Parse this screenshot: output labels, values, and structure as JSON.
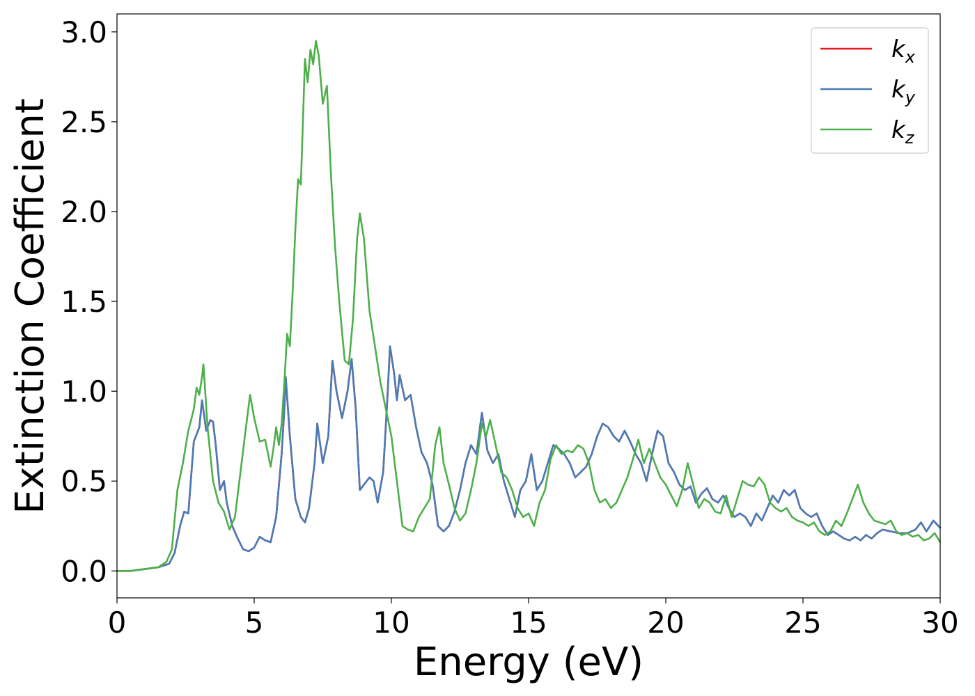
{
  "chart_data": {
    "type": "line",
    "xlabel": "Energy (eV)",
    "ylabel": "Extinction Coefficient",
    "xlim": [
      0,
      30
    ],
    "ylim": [
      -0.15,
      3.1
    ],
    "xticks": [
      "0",
      "5",
      "10",
      "15",
      "20",
      "25",
      "30"
    ],
    "yticks": [
      "0.0",
      "0.5",
      "1.0",
      "1.5",
      "2.0",
      "2.5",
      "3.0"
    ],
    "grid": false,
    "legend_position": "top-right",
    "series": [
      {
        "name": "k_x",
        "legend": {
          "base": "k",
          "sub": "x"
        },
        "color": "#e41a1c",
        "same_as": "k_y"
      },
      {
        "name": "k_y",
        "legend": {
          "base": "k",
          "sub": "y"
        },
        "color": "#4a7bb7",
        "points": [
          [
            0,
            0
          ],
          [
            0.5,
            0
          ],
          [
            1.0,
            0.01
          ],
          [
            1.5,
            0.02
          ],
          [
            1.9,
            0.04
          ],
          [
            2.1,
            0.1
          ],
          [
            2.3,
            0.25
          ],
          [
            2.45,
            0.33
          ],
          [
            2.6,
            0.32
          ],
          [
            2.8,
            0.72
          ],
          [
            3.0,
            0.8
          ],
          [
            3.1,
            0.95
          ],
          [
            3.25,
            0.78
          ],
          [
            3.4,
            0.84
          ],
          [
            3.5,
            0.83
          ],
          [
            3.6,
            0.7
          ],
          [
            3.75,
            0.45
          ],
          [
            3.9,
            0.5
          ],
          [
            4.0,
            0.38
          ],
          [
            4.2,
            0.25
          ],
          [
            4.4,
            0.18
          ],
          [
            4.6,
            0.12
          ],
          [
            4.8,
            0.11
          ],
          [
            5.0,
            0.13
          ],
          [
            5.2,
            0.19
          ],
          [
            5.4,
            0.17
          ],
          [
            5.6,
            0.16
          ],
          [
            5.8,
            0.3
          ],
          [
            6.0,
            0.65
          ],
          [
            6.1,
            0.9
          ],
          [
            6.15,
            1.08
          ],
          [
            6.3,
            0.75
          ],
          [
            6.5,
            0.4
          ],
          [
            6.7,
            0.3
          ],
          [
            6.85,
            0.27
          ],
          [
            7.0,
            0.35
          ],
          [
            7.2,
            0.6
          ],
          [
            7.3,
            0.82
          ],
          [
            7.5,
            0.6
          ],
          [
            7.7,
            0.75
          ],
          [
            7.85,
            1.17
          ],
          [
            8.0,
            1.0
          ],
          [
            8.2,
            0.85
          ],
          [
            8.4,
            1.0
          ],
          [
            8.55,
            1.18
          ],
          [
            8.7,
            0.9
          ],
          [
            8.85,
            0.45
          ],
          [
            9.0,
            0.48
          ],
          [
            9.2,
            0.52
          ],
          [
            9.35,
            0.5
          ],
          [
            9.5,
            0.38
          ],
          [
            9.7,
            0.55
          ],
          [
            9.85,
            0.95
          ],
          [
            9.95,
            1.25
          ],
          [
            10.1,
            1.1
          ],
          [
            10.2,
            0.95
          ],
          [
            10.3,
            1.09
          ],
          [
            10.5,
            0.95
          ],
          [
            10.7,
            0.98
          ],
          [
            10.9,
            0.8
          ],
          [
            11.1,
            0.66
          ],
          [
            11.3,
            0.6
          ],
          [
            11.5,
            0.48
          ],
          [
            11.7,
            0.25
          ],
          [
            11.9,
            0.22
          ],
          [
            12.1,
            0.25
          ],
          [
            12.3,
            0.33
          ],
          [
            12.5,
            0.45
          ],
          [
            12.7,
            0.6
          ],
          [
            12.9,
            0.7
          ],
          [
            13.1,
            0.65
          ],
          [
            13.3,
            0.88
          ],
          [
            13.5,
            0.67
          ],
          [
            13.7,
            0.6
          ],
          [
            13.9,
            0.65
          ],
          [
            14.1,
            0.5
          ],
          [
            14.3,
            0.4
          ],
          [
            14.5,
            0.3
          ],
          [
            14.7,
            0.45
          ],
          [
            14.9,
            0.5
          ],
          [
            15.1,
            0.65
          ],
          [
            15.3,
            0.45
          ],
          [
            15.5,
            0.5
          ],
          [
            15.7,
            0.6
          ],
          [
            15.9,
            0.7
          ],
          [
            16.1,
            0.68
          ],
          [
            16.3,
            0.65
          ],
          [
            16.5,
            0.6
          ],
          [
            16.7,
            0.52
          ],
          [
            16.9,
            0.55
          ],
          [
            17.1,
            0.58
          ],
          [
            17.3,
            0.65
          ],
          [
            17.5,
            0.75
          ],
          [
            17.7,
            0.82
          ],
          [
            17.9,
            0.8
          ],
          [
            18.1,
            0.75
          ],
          [
            18.3,
            0.72
          ],
          [
            18.5,
            0.78
          ],
          [
            18.7,
            0.72
          ],
          [
            18.9,
            0.65
          ],
          [
            19.1,
            0.6
          ],
          [
            19.3,
            0.5
          ],
          [
            19.5,
            0.65
          ],
          [
            19.7,
            0.78
          ],
          [
            19.9,
            0.75
          ],
          [
            20.1,
            0.6
          ],
          [
            20.3,
            0.55
          ],
          [
            20.5,
            0.48
          ],
          [
            20.7,
            0.45
          ],
          [
            20.9,
            0.47
          ],
          [
            21.1,
            0.38
          ],
          [
            21.3,
            0.43
          ],
          [
            21.5,
            0.46
          ],
          [
            21.7,
            0.4
          ],
          [
            21.9,
            0.38
          ],
          [
            22.1,
            0.42
          ],
          [
            22.3,
            0.35
          ],
          [
            22.5,
            0.3
          ],
          [
            22.7,
            0.32
          ],
          [
            22.9,
            0.3
          ],
          [
            23.1,
            0.25
          ],
          [
            23.3,
            0.32
          ],
          [
            23.5,
            0.28
          ],
          [
            23.7,
            0.35
          ],
          [
            23.9,
            0.42
          ],
          [
            24.1,
            0.38
          ],
          [
            24.3,
            0.45
          ],
          [
            24.5,
            0.42
          ],
          [
            24.7,
            0.45
          ],
          [
            24.9,
            0.35
          ],
          [
            25.1,
            0.32
          ],
          [
            25.3,
            0.3
          ],
          [
            25.5,
            0.32
          ],
          [
            25.7,
            0.25
          ],
          [
            25.9,
            0.2
          ],
          [
            26.1,
            0.22
          ],
          [
            26.3,
            0.2
          ],
          [
            26.5,
            0.18
          ],
          [
            26.7,
            0.17
          ],
          [
            26.9,
            0.19
          ],
          [
            27.1,
            0.17
          ],
          [
            27.3,
            0.2
          ],
          [
            27.5,
            0.18
          ],
          [
            27.7,
            0.21
          ],
          [
            27.9,
            0.23
          ],
          [
            28.2,
            0.22
          ],
          [
            28.5,
            0.21
          ],
          [
            28.8,
            0.21
          ],
          [
            29.1,
            0.23
          ],
          [
            29.3,
            0.27
          ],
          [
            29.5,
            0.22
          ],
          [
            29.75,
            0.28
          ],
          [
            30.0,
            0.24
          ]
        ]
      },
      {
        "name": "k_z",
        "legend": {
          "base": "k",
          "sub": "z"
        },
        "color": "#4daf4a",
        "points": [
          [
            0,
            0
          ],
          [
            0.5,
            0
          ],
          [
            1.0,
            0.01
          ],
          [
            1.5,
            0.02
          ],
          [
            1.8,
            0.05
          ],
          [
            2.0,
            0.12
          ],
          [
            2.2,
            0.45
          ],
          [
            2.4,
            0.6
          ],
          [
            2.6,
            0.78
          ],
          [
            2.8,
            0.9
          ],
          [
            2.9,
            1.02
          ],
          [
            3.0,
            0.98
          ],
          [
            3.1,
            1.08
          ],
          [
            3.15,
            1.15
          ],
          [
            3.3,
            0.8
          ],
          [
            3.5,
            0.5
          ],
          [
            3.7,
            0.38
          ],
          [
            3.9,
            0.33
          ],
          [
            4.1,
            0.23
          ],
          [
            4.3,
            0.3
          ],
          [
            4.5,
            0.55
          ],
          [
            4.7,
            0.8
          ],
          [
            4.85,
            0.98
          ],
          [
            5.0,
            0.85
          ],
          [
            5.2,
            0.72
          ],
          [
            5.4,
            0.73
          ],
          [
            5.6,
            0.58
          ],
          [
            5.7,
            0.68
          ],
          [
            5.8,
            0.8
          ],
          [
            5.9,
            0.7
          ],
          [
            6.0,
            0.82
          ],
          [
            6.1,
            1.05
          ],
          [
            6.2,
            1.32
          ],
          [
            6.3,
            1.25
          ],
          [
            6.4,
            1.55
          ],
          [
            6.5,
            1.9
          ],
          [
            6.6,
            2.18
          ],
          [
            6.7,
            2.15
          ],
          [
            6.85,
            2.85
          ],
          [
            6.95,
            2.72
          ],
          [
            7.05,
            2.9
          ],
          [
            7.15,
            2.82
          ],
          [
            7.25,
            2.95
          ],
          [
            7.35,
            2.87
          ],
          [
            7.5,
            2.6
          ],
          [
            7.65,
            2.7
          ],
          [
            7.8,
            2.2
          ],
          [
            7.95,
            1.8
          ],
          [
            8.1,
            1.5
          ],
          [
            8.3,
            1.17
          ],
          [
            8.45,
            1.15
          ],
          [
            8.6,
            1.4
          ],
          [
            8.75,
            1.85
          ],
          [
            8.85,
            1.99
          ],
          [
            9.0,
            1.85
          ],
          [
            9.2,
            1.45
          ],
          [
            9.4,
            1.25
          ],
          [
            9.6,
            1.05
          ],
          [
            9.8,
            0.9
          ],
          [
            10.0,
            0.75
          ],
          [
            10.2,
            0.5
          ],
          [
            10.4,
            0.25
          ],
          [
            10.6,
            0.23
          ],
          [
            10.8,
            0.22
          ],
          [
            11.0,
            0.3
          ],
          [
            11.2,
            0.35
          ],
          [
            11.4,
            0.4
          ],
          [
            11.6,
            0.7
          ],
          [
            11.75,
            0.8
          ],
          [
            11.9,
            0.6
          ],
          [
            12.1,
            0.48
          ],
          [
            12.3,
            0.35
          ],
          [
            12.5,
            0.28
          ],
          [
            12.7,
            0.32
          ],
          [
            12.9,
            0.45
          ],
          [
            13.1,
            0.6
          ],
          [
            13.3,
            0.82
          ],
          [
            13.45,
            0.75
          ],
          [
            13.6,
            0.84
          ],
          [
            13.8,
            0.7
          ],
          [
            14.0,
            0.55
          ],
          [
            14.2,
            0.52
          ],
          [
            14.4,
            0.45
          ],
          [
            14.6,
            0.35
          ],
          [
            14.8,
            0.3
          ],
          [
            15.0,
            0.32
          ],
          [
            15.2,
            0.25
          ],
          [
            15.4,
            0.38
          ],
          [
            15.6,
            0.45
          ],
          [
            15.8,
            0.62
          ],
          [
            16.0,
            0.7
          ],
          [
            16.2,
            0.65
          ],
          [
            16.4,
            0.67
          ],
          [
            16.6,
            0.66
          ],
          [
            16.8,
            0.7
          ],
          [
            17.0,
            0.68
          ],
          [
            17.2,
            0.6
          ],
          [
            17.4,
            0.45
          ],
          [
            17.6,
            0.38
          ],
          [
            17.8,
            0.4
          ],
          [
            18.0,
            0.35
          ],
          [
            18.2,
            0.38
          ],
          [
            18.4,
            0.45
          ],
          [
            18.6,
            0.52
          ],
          [
            18.8,
            0.62
          ],
          [
            19.0,
            0.73
          ],
          [
            19.2,
            0.6
          ],
          [
            19.4,
            0.68
          ],
          [
            19.6,
            0.6
          ],
          [
            19.8,
            0.52
          ],
          [
            20.0,
            0.48
          ],
          [
            20.2,
            0.42
          ],
          [
            20.4,
            0.36
          ],
          [
            20.6,
            0.45
          ],
          [
            20.8,
            0.6
          ],
          [
            21.0,
            0.48
          ],
          [
            21.2,
            0.35
          ],
          [
            21.4,
            0.4
          ],
          [
            21.6,
            0.38
          ],
          [
            21.8,
            0.33
          ],
          [
            22.0,
            0.32
          ],
          [
            22.2,
            0.42
          ],
          [
            22.4,
            0.3
          ],
          [
            22.6,
            0.4
          ],
          [
            22.8,
            0.5
          ],
          [
            23.0,
            0.48
          ],
          [
            23.2,
            0.47
          ],
          [
            23.4,
            0.52
          ],
          [
            23.6,
            0.48
          ],
          [
            23.8,
            0.38
          ],
          [
            24.0,
            0.35
          ],
          [
            24.2,
            0.33
          ],
          [
            24.4,
            0.35
          ],
          [
            24.6,
            0.3
          ],
          [
            24.8,
            0.28
          ],
          [
            25.0,
            0.27
          ],
          [
            25.2,
            0.25
          ],
          [
            25.4,
            0.27
          ],
          [
            25.6,
            0.22
          ],
          [
            25.8,
            0.2
          ],
          [
            26.0,
            0.22
          ],
          [
            26.2,
            0.28
          ],
          [
            26.4,
            0.25
          ],
          [
            26.6,
            0.32
          ],
          [
            26.8,
            0.4
          ],
          [
            27.0,
            0.48
          ],
          [
            27.2,
            0.38
          ],
          [
            27.4,
            0.32
          ],
          [
            27.6,
            0.28
          ],
          [
            27.8,
            0.27
          ],
          [
            28.0,
            0.26
          ],
          [
            28.2,
            0.28
          ],
          [
            28.4,
            0.22
          ],
          [
            28.6,
            0.2
          ],
          [
            28.8,
            0.21
          ],
          [
            29.0,
            0.19
          ],
          [
            29.2,
            0.2
          ],
          [
            29.4,
            0.17
          ],
          [
            29.6,
            0.18
          ],
          [
            29.8,
            0.21
          ],
          [
            30.0,
            0.16
          ]
        ]
      }
    ]
  }
}
